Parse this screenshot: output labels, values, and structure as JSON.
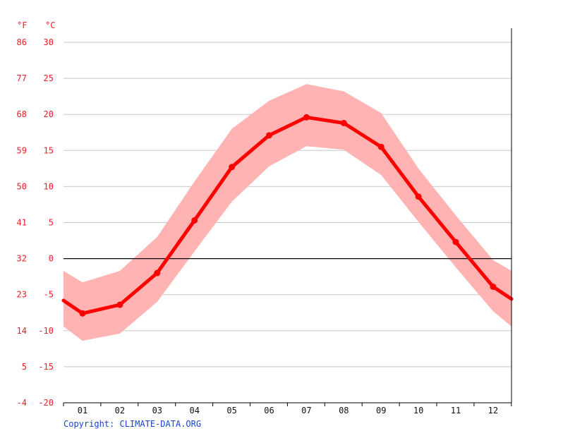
{
  "colors": {
    "line": "#ff0000",
    "band": "#ffb3b3",
    "grid": "#c8c8c8",
    "zero": "#000000",
    "ticks_temp": "#e8202a",
    "ticks_month": "#111111",
    "copyright": "#1a44cc"
  },
  "chart_data": {
    "type": "line",
    "units": {
      "f": "°F",
      "c": "°C"
    },
    "categories": [
      "01",
      "02",
      "03",
      "04",
      "05",
      "06",
      "07",
      "08",
      "09",
      "10",
      "11",
      "12"
    ],
    "y_ticks_c": [
      "30",
      "25",
      "20",
      "15",
      "10",
      "5",
      "0",
      "-5",
      "-10",
      "-15",
      "-20"
    ],
    "y_ticks_f": [
      "86",
      "77",
      "68",
      "59",
      "50",
      "41",
      "32",
      "23",
      "14",
      "5",
      "-4"
    ],
    "ylim": [
      -20,
      30
    ],
    "grid": true,
    "series": [
      {
        "role": "mean",
        "values": [
          -7.6,
          -6.4,
          -2.0,
          5.3,
          12.7,
          17.1,
          19.6,
          18.8,
          15.5,
          8.6,
          2.3,
          -3.9
        ]
      },
      {
        "role": "max",
        "values": [
          -3.3,
          -1.7,
          3.0,
          10.7,
          18.0,
          21.9,
          24.2,
          23.2,
          20.2,
          12.5,
          6.0,
          -0.2
        ]
      },
      {
        "role": "min",
        "values": [
          -11.4,
          -10.4,
          -6.0,
          1.0,
          7.9,
          12.8,
          15.6,
          15.1,
          11.6,
          5.1,
          -1.2,
          -7.3
        ]
      }
    ],
    "line_edges": {
      "left": -5.8,
      "right": -5.6
    },
    "band_edges": {
      "left_max": -1.7,
      "left_min": -9.4,
      "right_max": -1.7,
      "right_min": -9.4
    }
  },
  "footer": {
    "copyright": "Copyright: CLIMATE-DATA.ORG"
  }
}
